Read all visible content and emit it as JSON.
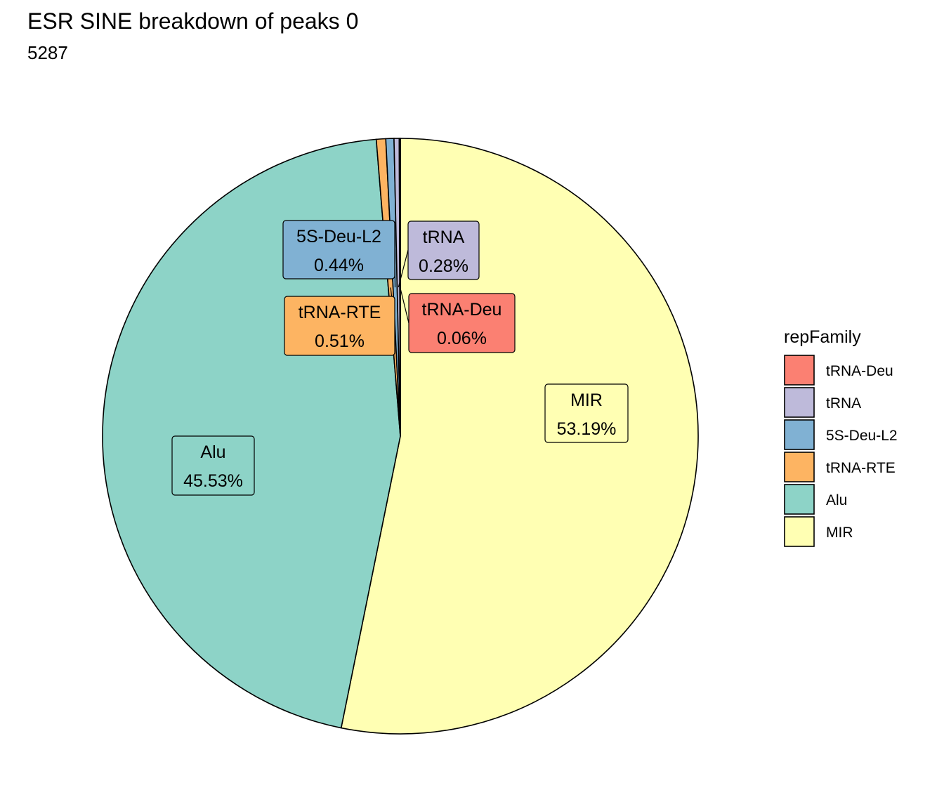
{
  "chart_data": {
    "type": "pie",
    "title": "ESR SINE breakdown of peaks 0",
    "subtitle": "5287",
    "legend_title": "repFamily",
    "legend_position": "right",
    "slices": [
      {
        "name": "MIR",
        "value": 53.19,
        "label": "53.19%",
        "color": "#FFFFB3"
      },
      {
        "name": "Alu",
        "value": 45.53,
        "label": "45.53%",
        "color": "#8DD3C7"
      },
      {
        "name": "tRNA-RTE",
        "value": 0.51,
        "label": "0.51%",
        "color": "#FDB462"
      },
      {
        "name": "5S-Deu-L2",
        "value": 0.44,
        "label": "0.44%",
        "color": "#80B1D3"
      },
      {
        "name": "tRNA",
        "value": 0.28,
        "label": "0.28%",
        "color": "#BEBADA"
      },
      {
        "name": "tRNA-Deu",
        "value": 0.06,
        "label": "0.06%",
        "color": "#FB8072"
      }
    ],
    "legend_order": [
      "tRNA-Deu",
      "tRNA",
      "5S-Deu-L2",
      "tRNA-RTE",
      "Alu",
      "MIR"
    ]
  }
}
